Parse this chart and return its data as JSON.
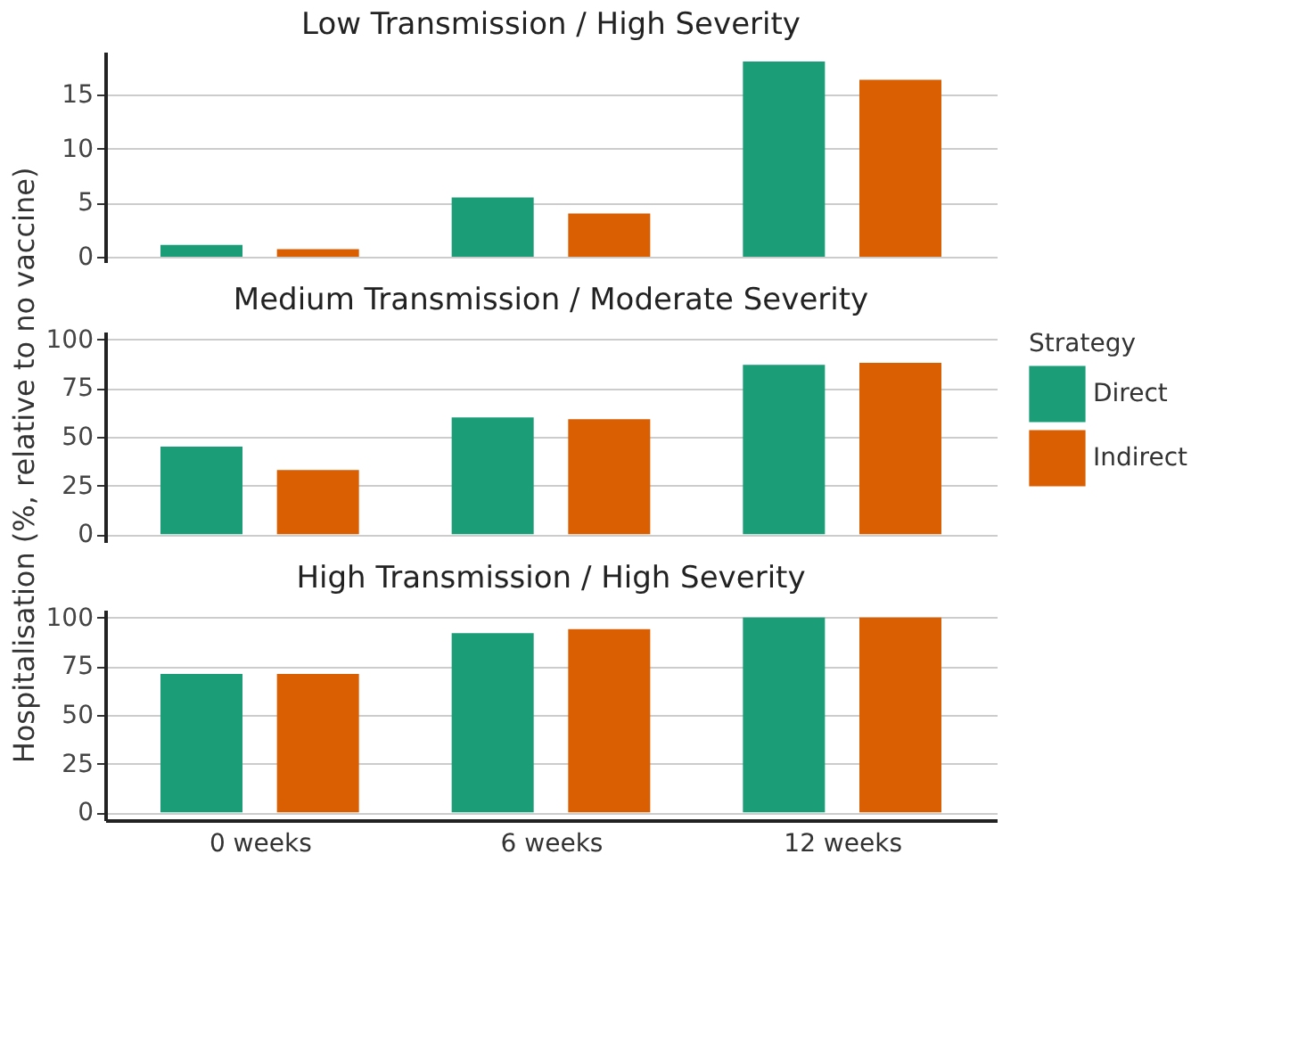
{
  "chart_data": [
    {
      "type": "bar",
      "title": "Low Transmission / High Severity",
      "categories": [
        null,
        null,
        null
      ],
      "series": [
        {
          "color": "#1b9e77",
          "values": [
            1.1,
            5.5,
            18.1
          ]
        },
        {
          "color": "#d95f02",
          "values": [
            0.7,
            4.0,
            16.4
          ]
        }
      ],
      "ylim": [
        -0.5,
        19
      ],
      "yticks": [
        0,
        5,
        10,
        15
      ],
      "grid": "y",
      "tick_labels": "y"
    },
    {
      "type": "bar",
      "title": "Medium Transmission / Moderate Severity",
      "ylabel": "Hospitalisation (%, relative to no vaccine)",
      "legend_title": "Strategy",
      "categories": [
        null,
        null,
        null
      ],
      "series": [
        {
          "name": "Direct",
          "color": "#1b9e77",
          "values": [
            45,
            60,
            87
          ]
        },
        {
          "name": "Indirect",
          "color": "#d95f02",
          "values": [
            33,
            59,
            88
          ]
        }
      ],
      "ylim": [
        -4,
        104
      ],
      "yticks": [
        0,
        25,
        50,
        75,
        100
      ],
      "grid": "y",
      "legend": "right",
      "tick_labels": "y"
    },
    {
      "type": "bar",
      "title": "High Transmission / High Severity",
      "categories": [
        "0 weeks",
        "6 weeks",
        "12 weeks"
      ],
      "series": [
        {
          "color": "#1b9e77",
          "values": [
            71,
            92,
            100
          ]
        },
        {
          "color": "#d95f02",
          "values": [
            71,
            94,
            100
          ]
        }
      ],
      "ylim": [
        -4,
        104
      ],
      "yticks": [
        0,
        25,
        50,
        75,
        100
      ],
      "grid": "y"
    }
  ]
}
